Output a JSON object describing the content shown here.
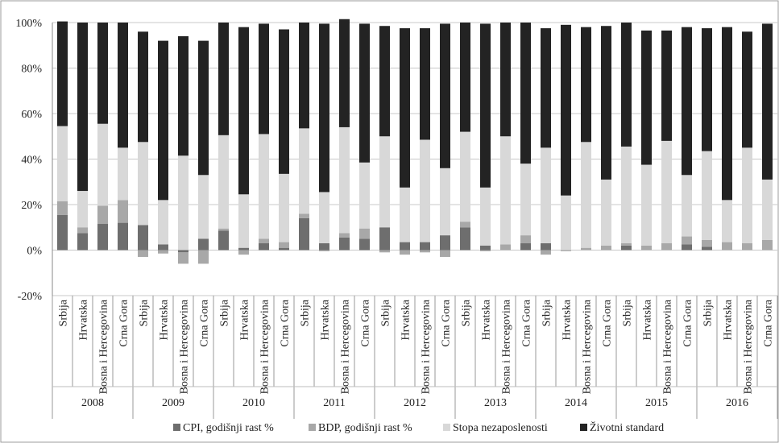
{
  "chart_data": {
    "type": "bar",
    "stacked": true,
    "title": "",
    "xlabel": "",
    "ylabel": "",
    "ylim": [
      -20,
      100
    ],
    "yticks": [
      "-20%",
      "0%",
      "20%",
      "40%",
      "60%",
      "80%",
      "100%"
    ],
    "years": [
      "2008",
      "2009",
      "2010",
      "2011",
      "2012",
      "2013",
      "2014",
      "2015",
      "2016"
    ],
    "countries": [
      "Srbija",
      "Hrvatska",
      "Bosna i Hercegovina",
      "Crna Gora"
    ],
    "legend_position": "bottom",
    "grid": "horizontal",
    "series": [
      {
        "name": "CPI, godišnji rast %",
        "color": "#6e6e6e",
        "values": [
          15.5,
          7.5,
          11.5,
          12.0,
          11.0,
          2.5,
          -1.0,
          5.0,
          8.5,
          1.0,
          3.0,
          1.0,
          14.0,
          3.0,
          5.5,
          5.0,
          10.0,
          3.5,
          3.5,
          6.5,
          10.0,
          2.0,
          0.0,
          3.0,
          3.0,
          0.0,
          0.0,
          0.0,
          2.0,
          0.0,
          0.0,
          2.5,
          1.5,
          0.0,
          0.0,
          0.0
        ]
      },
      {
        "name": "BDP, godišnji rast %",
        "color": "#a8a8a8",
        "values": [
          6.0,
          2.5,
          8.0,
          10.0,
          -3.0,
          -1.5,
          -5.0,
          -6.0,
          1.0,
          -2.0,
          2.0,
          2.5,
          2.0,
          -0.5,
          2.0,
          4.5,
          -1.0,
          -2.0,
          -1.0,
          -3.0,
          2.5,
          -0.5,
          2.5,
          3.5,
          -2.0,
          -0.5,
          1.0,
          2.0,
          1.0,
          2.0,
          3.0,
          3.5,
          3.0,
          3.5,
          3.0,
          4.5
        ]
      },
      {
        "name": "Stopa nezaposlenosti",
        "color": "#d8d8d8",
        "values": [
          33.0,
          16.0,
          36.0,
          23.0,
          36.5,
          19.5,
          41.5,
          28.0,
          41.0,
          23.5,
          46.0,
          30.0,
          37.5,
          22.5,
          46.5,
          29.0,
          40.0,
          24.0,
          45.0,
          29.5,
          39.5,
          25.5,
          47.5,
          31.5,
          42.0,
          24.0,
          46.5,
          29.0,
          42.5,
          35.5,
          45.0,
          27.0,
          39.0,
          18.5,
          42.0,
          26.5
        ]
      },
      {
        "name": "Životni standard",
        "color": "#232323",
        "values": [
          46.0,
          74.0,
          44.5,
          55.0,
          48.5,
          70.0,
          52.5,
          59.0,
          49.5,
          73.5,
          48.5,
          63.5,
          46.5,
          74.0,
          47.5,
          61.0,
          48.5,
          70.0,
          49.0,
          63.5,
          48.0,
          72.0,
          50.0,
          62.0,
          52.5,
          75.0,
          50.5,
          67.5,
          54.5,
          59.0,
          48.5,
          65.0,
          54.0,
          76.0,
          51.0,
          68.5
        ]
      }
    ]
  }
}
